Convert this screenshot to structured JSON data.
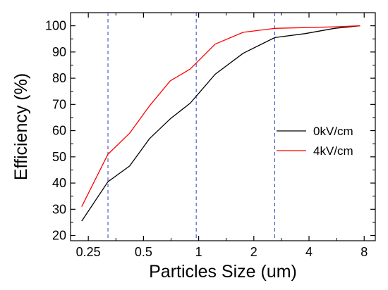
{
  "chart_data": {
    "type": "line",
    "xlabel": "Particles Size (um)",
    "ylabel": "Efficiency (%)",
    "x_scale": "log",
    "xlim": [
      0.2,
      9.2
    ],
    "ylim": [
      18,
      105
    ],
    "x_ticks": [
      {
        "value": 0.25,
        "label": "0.25"
      },
      {
        "value": 0.5,
        "label": "0.5"
      },
      {
        "value": 1,
        "label": "1"
      },
      {
        "value": 2,
        "label": "2"
      },
      {
        "value": 4,
        "label": "4"
      },
      {
        "value": 8,
        "label": "8"
      }
    ],
    "y_ticks": [
      {
        "value": 20,
        "label": "20"
      },
      {
        "value": 30,
        "label": "30"
      },
      {
        "value": 40,
        "label": "40"
      },
      {
        "value": 50,
        "label": "50"
      },
      {
        "value": 60,
        "label": "60"
      },
      {
        "value": 70,
        "label": "70"
      },
      {
        "value": 80,
        "label": "80"
      },
      {
        "value": 90,
        "label": "90"
      },
      {
        "value": 100,
        "label": "100"
      }
    ],
    "reference_lines_x": [
      0.32,
      0.97,
      2.6
    ],
    "legend_position": "center-right",
    "grid": false,
    "series": [
      {
        "name": "0kV/cm",
        "color": "#000000",
        "x": [
          0.23,
          0.32,
          0.42,
          0.54,
          0.7,
          0.9,
          1.23,
          1.75,
          2.6,
          3.8,
          5.5,
          7.6
        ],
        "y": [
          25.5,
          40.5,
          46.5,
          57,
          64.5,
          70.5,
          81.5,
          89.5,
          95.5,
          97,
          99,
          100
        ]
      },
      {
        "name": "4kV/cm",
        "color": "#ff0000",
        "x": [
          0.23,
          0.32,
          0.42,
          0.54,
          0.7,
          0.9,
          1.23,
          1.75,
          2.6,
          3.8,
          5.5,
          7.6
        ],
        "y": [
          31,
          51,
          59,
          69.5,
          79,
          83.5,
          93,
          97.5,
          99,
          99.3,
          99.6,
          100
        ]
      }
    ]
  }
}
